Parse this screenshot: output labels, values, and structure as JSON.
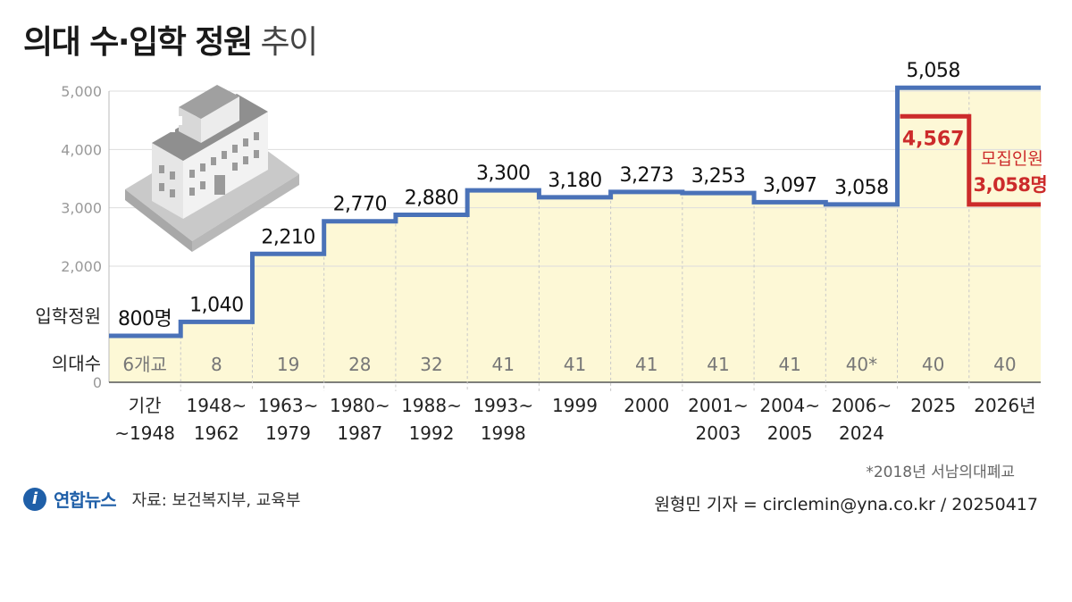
{
  "title": {
    "bold": "의대 수·입학 정원",
    "light": "추이"
  },
  "colors": {
    "line": "#4a72b8",
    "recruit": "#cc2b2b",
    "fill": "#fdf8d6",
    "grid": "#dddddd"
  },
  "icon": "hospital-building-icon",
  "labels": {
    "row_quota": "입학정원",
    "row_schools": "의대수"
  },
  "chart_data": {
    "type": "line",
    "ylim": [
      0,
      5000
    ],
    "y_ticks": [
      "0",
      "2,000",
      "3,000",
      "4,000",
      "5,000"
    ],
    "periods": [
      {
        "line1": "기간",
        "line2": "~1948",
        "value": 800,
        "label": "800명",
        "schools": "6개교"
      },
      {
        "line1": "1948~",
        "line2": "1962",
        "value": 1040,
        "label": "1,040",
        "schools": "8"
      },
      {
        "line1": "1963~",
        "line2": "1979",
        "value": 2210,
        "label": "2,210",
        "schools": "19"
      },
      {
        "line1": "1980~",
        "line2": "1987",
        "value": 2770,
        "label": "2,770",
        "schools": "28"
      },
      {
        "line1": "1988~",
        "line2": "1992",
        "value": 2880,
        "label": "2,880",
        "schools": "32"
      },
      {
        "line1": "1993~",
        "line2": "1998",
        "value": 3300,
        "label": "3,300",
        "schools": "41"
      },
      {
        "line1": "1999",
        "line2": "",
        "value": 3180,
        "label": "3,180",
        "schools": "41"
      },
      {
        "line1": "2000",
        "line2": "",
        "value": 3273,
        "label": "3,273",
        "schools": "41"
      },
      {
        "line1": "2001~",
        "line2": "2003",
        "value": 3253,
        "label": "3,253",
        "schools": "41"
      },
      {
        "line1": "2004~",
        "line2": "2005",
        "value": 3097,
        "label": "3,097",
        "schools": "41"
      },
      {
        "line1": "2006~",
        "line2": "2024",
        "value": 3058,
        "label": "3,058",
        "schools": "40*"
      },
      {
        "line1": "2025",
        "line2": "",
        "value": 5058,
        "label": "5,058",
        "schools": "40"
      },
      {
        "line1": "2026년",
        "line2": "",
        "value": 5058,
        "label": "",
        "schools": "40"
      }
    ],
    "recruitment": {
      "label": "모집인원",
      "series": [
        {
          "period": "2025",
          "value": 4567,
          "label": "4,567"
        },
        {
          "period": "2026년",
          "value": 3058,
          "label": "3,058명"
        }
      ]
    }
  },
  "footnote": "*2018년 서남의대폐교",
  "source": {
    "logo_text": "연합뉴스",
    "text": "자료: 보건복지부, 교육부"
  },
  "credit": "원형민 기자 = circlemin@yna.co.kr / 20250417"
}
